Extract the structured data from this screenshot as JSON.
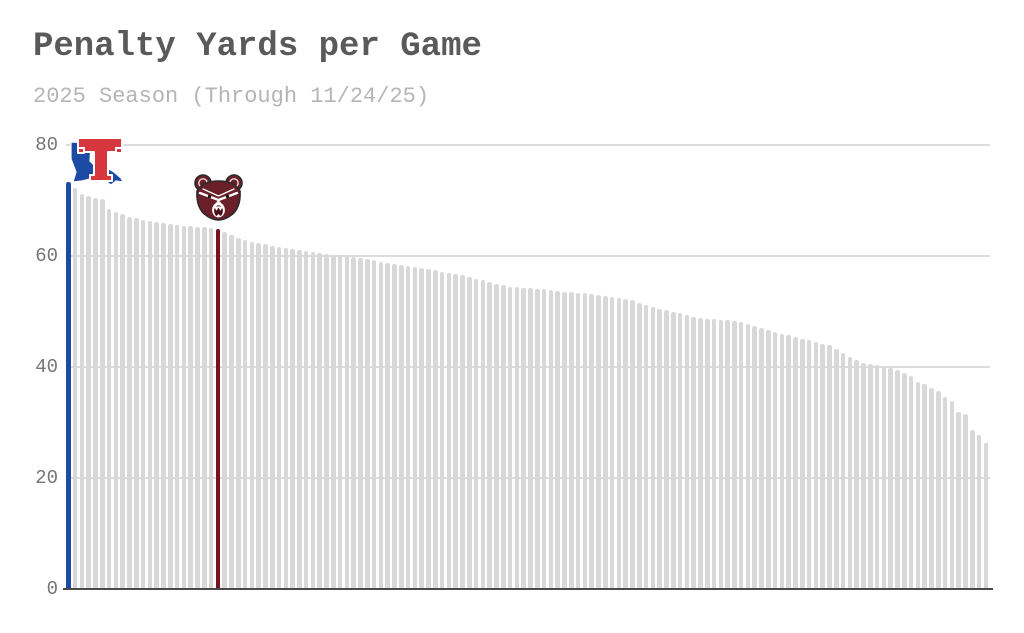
{
  "header": {
    "title": "Penalty Yards per Game",
    "subtitle": "2025 Season (Through 11/24/25)"
  },
  "chart_data": {
    "type": "bar",
    "title": "Penalty Yards per Game",
    "subtitle": "2025 Season (Through 11/24/25)",
    "xlabel": "",
    "ylabel": "",
    "ylim": [
      0,
      80
    ],
    "yticks": [
      0,
      20,
      40,
      60,
      80
    ],
    "grid": true,
    "legend_position": "none",
    "sort_order": "descending",
    "categories_note": "FBS teams ranked by penalty yards per game; individual team names not shown except highlighted logos",
    "values": [
      73.3,
      72.3,
      71.2,
      70.8,
      70.4,
      70.2,
      68.4,
      67.9,
      67.5,
      67.1,
      66.8,
      66.5,
      66.3,
      66.1,
      65.9,
      65.8,
      65.6,
      65.5,
      65.4,
      65.3,
      65.2,
      65.0,
      64.9,
      64.3,
      63.8,
      63.3,
      62.9,
      62.6,
      62.3,
      62.1,
      61.9,
      61.7,
      61.5,
      61.3,
      61.1,
      60.9,
      60.7,
      60.5,
      60.3,
      60.2,
      60.1,
      60.0,
      59.8,
      59.6,
      59.4,
      59.2,
      59.0,
      58.8,
      58.6,
      58.4,
      58.2,
      58.0,
      57.8,
      57.6,
      57.4,
      57.2,
      57.0,
      56.8,
      56.5,
      56.2,
      55.9,
      55.6,
      55.3,
      55.0,
      54.7,
      54.5,
      54.4,
      54.3,
      54.2,
      54.1,
      54.0,
      53.8,
      53.7,
      53.6,
      53.5,
      53.4,
      53.3,
      53.2,
      53.0,
      52.8,
      52.6,
      52.4,
      52.2,
      52.0,
      51.6,
      51.2,
      50.8,
      50.5,
      50.2,
      50.0,
      49.7,
      49.4,
      49.1,
      48.9,
      48.7,
      48.6,
      48.5,
      48.4,
      48.3,
      48.1,
      47.8,
      47.4,
      47.0,
      46.6,
      46.3,
      46.0,
      45.7,
      45.4,
      45.1,
      44.8,
      44.5,
      44.2,
      43.9,
      43.3,
      42.6,
      41.9,
      41.3,
      40.8,
      40.6,
      40.4,
      40.2,
      39.9,
      39.4,
      38.9,
      38.4,
      37.3,
      36.9,
      36.3,
      35.6,
      34.6,
      33.8,
      31.9,
      31.5,
      28.6,
      27.7,
      26.4
    ],
    "highlights": [
      {
        "index": 0,
        "team": "Louisiana Tech",
        "value": 73.3,
        "color": "#1c4ba4",
        "logo": "louisiana-tech-logo"
      },
      {
        "index": 22,
        "team": "Missouri State",
        "value": 64.9,
        "color": "#781220",
        "logo": "missouri-state-bear-logo"
      }
    ],
    "bar_color_default": "#d8d8d8"
  },
  "colors": {
    "title": "#5a5a5a",
    "subtitle": "#b5b5b5",
    "tick_label": "#757575",
    "gridline": "#dcdcdc",
    "axis_line": "#4a4a4a",
    "background": "#ffffff",
    "latech_blue": "#1c4ba4",
    "latech_red": "#d6373f",
    "mostate_maroon": "#6b1f28"
  }
}
